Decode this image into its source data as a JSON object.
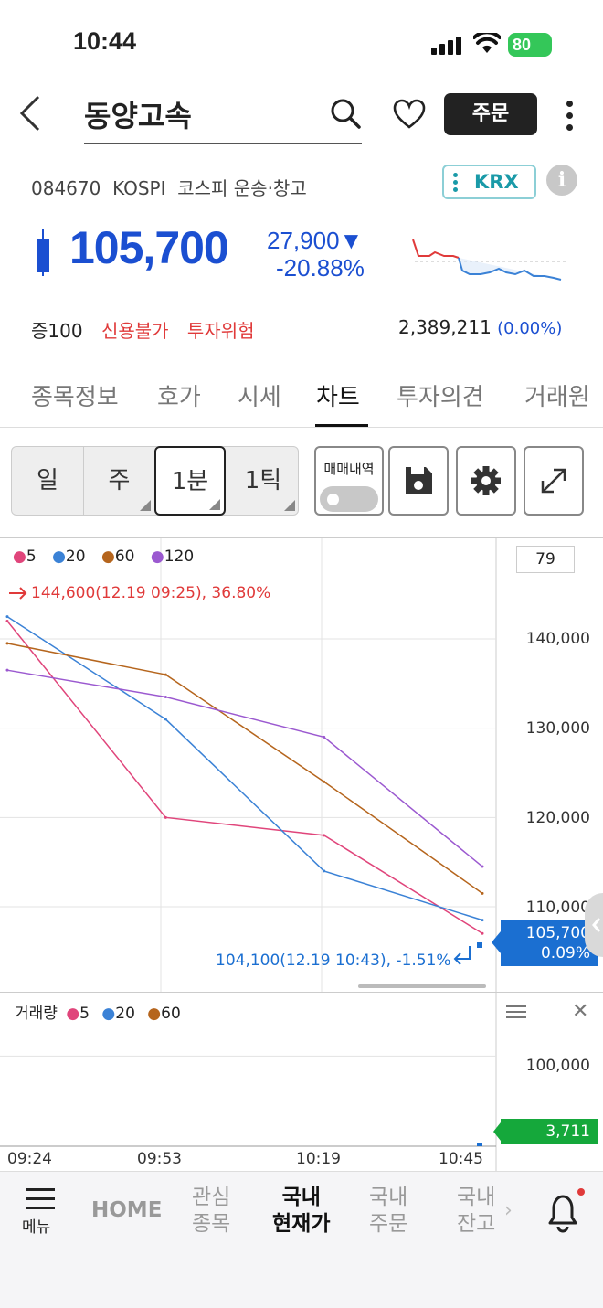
{
  "status": {
    "time": "10:44",
    "battery": "80"
  },
  "header": {
    "title": "동양고속",
    "order_label": "주문"
  },
  "info": {
    "code": "084670",
    "market": "KOSPI",
    "sector": "코스피 운송·창고",
    "exchange_label": "KRX",
    "info_icon": "i"
  },
  "quote": {
    "price": "105,700",
    "change": "27,900",
    "change_arrow": "▼",
    "change_pct": "-20.88%",
    "margin": "증100",
    "credit": "신용불가",
    "risk": "투자위험",
    "volume": "2,389,211",
    "volume_pct": "(0.00%)"
  },
  "tabs": [
    "종목정보",
    "호가",
    "시세",
    "차트",
    "투자의견",
    "거래원"
  ],
  "active_tab": "차트",
  "toolbar": {
    "periods": [
      "일",
      "주",
      "1분",
      "1틱"
    ],
    "active_period": "1분",
    "trade_history_label": "매매내역"
  },
  "chart": {
    "legend": [
      {
        "label": "5",
        "color": "#e0457b"
      },
      {
        "label": "20",
        "color": "#3b82d6"
      },
      {
        "label": "60",
        "color": "#b5651d"
      },
      {
        "label": "120",
        "color": "#9b59d0"
      }
    ],
    "crosshair_value": "79",
    "high_annotation": "144,600(12.19 09:25), 36.80%",
    "low_annotation": "104,100(12.19 10:43), -1.51%",
    "current_price": "105,700",
    "current_pct": "0.09%",
    "volume_label": "거래량",
    "volume_legend": [
      {
        "label": "5",
        "color": "#e0457b"
      },
      {
        "label": "20",
        "color": "#3b82d6"
      },
      {
        "label": "60",
        "color": "#b5651d"
      }
    ],
    "volume_axis_label": "100,000",
    "current_volume": "3,711",
    "x_labels": [
      "09:24",
      "09:53",
      "10:19",
      "10:45"
    ]
  },
  "chart_data": {
    "type": "line",
    "title": "",
    "xlabel": "",
    "ylabel": "",
    "x": [
      "09:24",
      "09:53",
      "10:19",
      "10:45"
    ],
    "y_ticks": [
      140000,
      130000,
      120000,
      110000
    ],
    "ylim": [
      103000,
      147000
    ],
    "series": [
      {
        "name": "5",
        "values": [
          142000,
          120000,
          118000,
          107000
        ]
      },
      {
        "name": "20",
        "values": [
          142500,
          131000,
          114000,
          108500
        ]
      },
      {
        "name": "60",
        "values": [
          139500,
          136000,
          124000,
          111500
        ]
      },
      {
        "name": "120",
        "values": [
          136500,
          133500,
          129000,
          114500
        ]
      }
    ],
    "last_price": 105700,
    "last_volume": 3711,
    "volume_ylim": [
      0,
      140000
    ],
    "volume_ticks": [
      100000
    ]
  },
  "bottom_nav": {
    "menu": "메뉴",
    "home": "HOME",
    "watch": [
      "관심",
      "종목"
    ],
    "domestic_price": [
      "국내",
      "현재가"
    ],
    "domestic_order": [
      "국내",
      "주문"
    ],
    "domestic_balance": [
      "국내",
      "잔고"
    ]
  }
}
